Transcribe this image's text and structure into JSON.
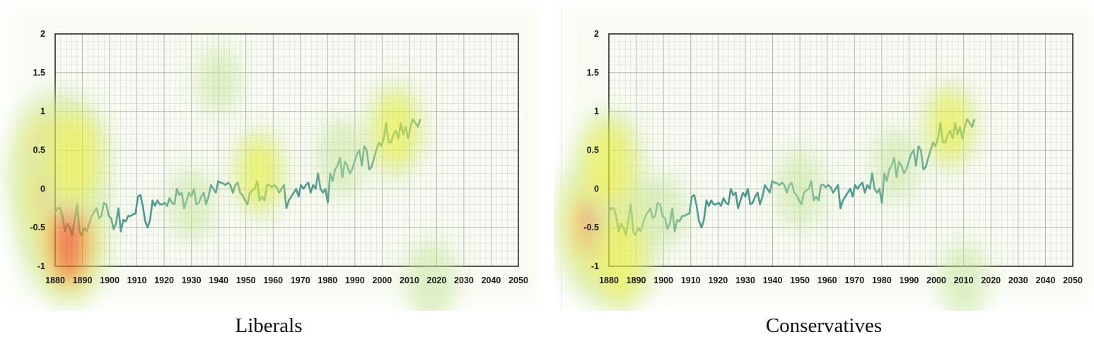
{
  "colors": {
    "line": "#3c8c8c",
    "grid_minor": "#d9d9d9",
    "grid_major": "#a6a6a6",
    "heat_low": "#c8e6a0",
    "heat_mid": "#e8ef3a",
    "heat_high": "#ee2a14"
  },
  "chart_data": [
    {
      "type": "line",
      "title": "",
      "caption": "Liberals",
      "xlim": [
        1880,
        2050
      ],
      "ylim": [
        -1,
        2
      ],
      "x_ticks": [
        1880,
        1890,
        1900,
        1910,
        1920,
        1930,
        1940,
        1950,
        1960,
        1970,
        1980,
        1990,
        2000,
        2010,
        2020,
        2030,
        2040,
        2050
      ],
      "y_ticks": [
        2,
        1.5,
        1,
        0.5,
        0,
        -0.5,
        -1
      ],
      "grid": true,
      "overlay": "attention heatmap"
    },
    {
      "type": "line",
      "title": "",
      "caption": "Conservatives",
      "xlim": [
        1880,
        2050
      ],
      "ylim": [
        -1,
        2
      ],
      "x_ticks": [
        1880,
        1890,
        1900,
        1910,
        1920,
        1930,
        1940,
        1950,
        1960,
        1970,
        1980,
        1990,
        2000,
        2010,
        2020,
        2030,
        2040,
        2050
      ],
      "y_ticks": [
        2,
        1.5,
        1,
        0.5,
        0,
        -0.5,
        -1
      ],
      "grid": true,
      "overlay": "attention heatmap"
    }
  ],
  "series": {
    "x_start": 1880,
    "x_end": 2014,
    "values": [
      -0.3,
      -0.25,
      -0.25,
      -0.35,
      -0.55,
      -0.45,
      -0.5,
      -0.6,
      -0.4,
      -0.2,
      -0.55,
      -0.6,
      -0.5,
      -0.55,
      -0.45,
      -0.35,
      -0.3,
      -0.25,
      -0.38,
      -0.35,
      -0.18,
      -0.2,
      -0.35,
      -0.38,
      -0.52,
      -0.45,
      -0.25,
      -0.55,
      -0.4,
      -0.42,
      -0.35,
      -0.35,
      -0.33,
      -0.32,
      -0.1,
      -0.08,
      -0.22,
      -0.42,
      -0.5,
      -0.4,
      -0.15,
      -0.22,
      -0.15,
      -0.2,
      -0.2,
      -0.18,
      -0.22,
      -0.12,
      -0.18,
      -0.2,
      0.0,
      -0.08,
      -0.05,
      -0.25,
      -0.15,
      -0.05,
      -0.1,
      0.0,
      -0.2,
      -0.18,
      -0.1,
      -0.05,
      -0.2,
      -0.1,
      0.05,
      0.0,
      -0.05,
      0.1,
      0.08,
      0.07,
      0.05,
      0.08,
      0.05,
      -0.05,
      0.05,
      0.08,
      -0.05,
      -0.08,
      -0.15,
      -0.2,
      -0.05,
      -0.02,
      0.0,
      0.1,
      -0.15,
      -0.1,
      -0.15,
      0.05,
      0.05,
      0.02,
      0.05,
      0.02,
      -0.05,
      0.0,
      0.05,
      -0.25,
      -0.15,
      -0.1,
      -0.05,
      0.0,
      -0.1,
      0.05,
      0.0,
      0.05,
      0.08,
      -0.05,
      0.05,
      0.0,
      0.2,
      0.0,
      -0.05,
      0.0,
      -0.18,
      0.2,
      0.1,
      0.25,
      0.3,
      0.4,
      0.15,
      0.35,
      0.3,
      0.2,
      0.25,
      0.35,
      0.45,
      0.5,
      0.3,
      0.55,
      0.5,
      0.25,
      0.28,
      0.4,
      0.5,
      0.6,
      0.55,
      0.65,
      0.85,
      0.6,
      0.6,
      0.7,
      0.75,
      0.65,
      0.85,
      0.7,
      0.8,
      0.65,
      0.8,
      0.9,
      0.85,
      0.8,
      0.9
    ]
  },
  "heat_blobs": [
    [
      {
        "x": 1880,
        "y": 0.2,
        "i": 1.0
      },
      {
        "x": 1882,
        "y": -0.3,
        "i": 0.95
      },
      {
        "x": 1885,
        "y": -0.7,
        "i": 0.7
      },
      {
        "x": 1887,
        "y": 0.4,
        "i": 0.6
      },
      {
        "x": 1955,
        "y": 0.2,
        "i": 0.35
      },
      {
        "x": 2005,
        "y": 0.75,
        "i": 0.4
      },
      {
        "x": 1985,
        "y": 0.4,
        "i": 0.25
      },
      {
        "x": 1930,
        "y": -0.2,
        "i": 0.2
      },
      {
        "x": 2018,
        "y": -1.2,
        "i": 0.3
      },
      {
        "x": 1940,
        "y": 1.4,
        "i": 0.15
      }
    ],
    [
      {
        "x": 1878,
        "y": -0.45,
        "i": 1.0
      },
      {
        "x": 1880,
        "y": 0.3,
        "i": 0.55
      },
      {
        "x": 1884,
        "y": -0.9,
        "i": 0.55
      },
      {
        "x": 1950,
        "y": 0.0,
        "i": 0.25
      },
      {
        "x": 2005,
        "y": 0.8,
        "i": 0.35
      },
      {
        "x": 1985,
        "y": 0.3,
        "i": 0.2
      },
      {
        "x": 2010,
        "y": -1.2,
        "i": 0.25
      },
      {
        "x": 1900,
        "y": -0.3,
        "i": 0.2
      }
    ]
  ]
}
